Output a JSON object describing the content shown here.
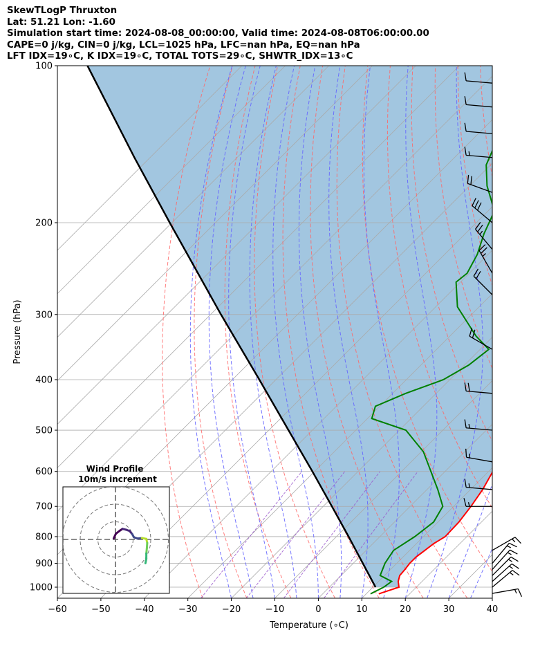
{
  "header": {
    "line1": "SkewTLogP Thruxton",
    "line2": "Lat: 51.21   Lon: -1.60",
    "line3": "Simulation start time: 2024-08-08_00:00:00, Valid time: 2024-08-08T06:00:00.00",
    "line4": "CAPE=0 j/kg, CIN=0 j/kg, LCL=1025 hPa, LFC=nan hPa, EQ=nan hPa",
    "line5": "LFT IDX=19∘C, K IDX=19∘C, TOTAL TOTS=29∘C, SHWTR_IDX=13∘C"
  },
  "chart_data": {
    "type": "skewt",
    "xlabel": "Temperature (∘C)",
    "ylabel": "Pressure (hPa)",
    "xlim": [
      -60,
      40
    ],
    "ylim": [
      1050,
      100
    ],
    "y_log_scale": true,
    "grid": true,
    "x_ticks": [
      -60,
      -50,
      -40,
      -30,
      -20,
      -10,
      0,
      10,
      20,
      30,
      40
    ],
    "x_tick_labels": [
      "−60",
      "−50",
      "−40",
      "−30",
      "−20",
      "−10",
      "0",
      "10",
      "20",
      "30",
      "40"
    ],
    "y_ticks": [
      1000,
      900,
      800,
      700,
      600,
      500,
      400,
      300,
      200,
      100
    ],
    "y_tick_labels": [
      "1000",
      "900",
      "800",
      "700",
      "600",
      "500",
      "400",
      "300",
      "200",
      "100"
    ],
    "colors": {
      "temperature": "#ff0000",
      "dewpoint": "#008000",
      "parcel": "#000000",
      "cape_fill": "#a2c6e0",
      "dry_adiabat": "#ff6666",
      "moist_adiabat": "#6666ff",
      "mixing_ratio": "#9955cc",
      "isotherm": "#aaaaaa"
    },
    "temperature": [
      [
        1030,
        12.9
      ],
      [
        1000,
        16.0
      ],
      [
        975,
        14.5
      ],
      [
        950,
        13.5
      ],
      [
        925,
        13.3
      ],
      [
        900,
        13.0
      ],
      [
        875,
        13.0
      ],
      [
        850,
        13.5
      ],
      [
        825,
        14.0
      ],
      [
        800,
        15.0
      ],
      [
        750,
        14.8
      ],
      [
        700,
        14.0
      ],
      [
        650,
        12.8
      ],
      [
        600,
        11.0
      ],
      [
        550,
        8.5
      ],
      [
        500,
        5.0
      ],
      [
        450,
        0.5
      ],
      [
        400,
        -4.0
      ],
      [
        350,
        -9.5
      ],
      [
        325,
        -12.8
      ],
      [
        300,
        -17.2
      ],
      [
        275,
        -22.0
      ],
      [
        250,
        -28.2
      ],
      [
        225,
        -33.8
      ],
      [
        210,
        -37.7
      ],
      [
        200,
        -39.5
      ],
      [
        185,
        -41.0
      ],
      [
        175,
        -43.0
      ],
      [
        160,
        -46.5
      ],
      [
        150,
        -49.7
      ],
      [
        140,
        -53.5
      ],
      [
        125,
        -59.0
      ],
      [
        115,
        -63.5
      ],
      [
        100,
        -71.0
      ]
    ],
    "dewpoint": [
      [
        1030,
        11.0
      ],
      [
        1000,
        12.5
      ],
      [
        975,
        13.0
      ],
      [
        950,
        9.0
      ],
      [
        900,
        7.3
      ],
      [
        850,
        6.3
      ],
      [
        800,
        8.0
      ],
      [
        750,
        9.0
      ],
      [
        700,
        7.5
      ],
      [
        650,
        2.5
      ],
      [
        550,
        -9.5
      ],
      [
        500,
        -18.5
      ],
      [
        475,
        -29.0
      ],
      [
        450,
        -31.0
      ],
      [
        425,
        -27.0
      ],
      [
        400,
        -21.5
      ],
      [
        375,
        -19.0
      ],
      [
        350,
        -18.0
      ],
      [
        330,
        -24.0
      ],
      [
        290,
        -35.0
      ],
      [
        260,
        -41.0
      ],
      [
        250,
        -40.5
      ],
      [
        230,
        -42.5
      ],
      [
        210,
        -45.7
      ],
      [
        190,
        -48.5
      ],
      [
        170,
        -56.0
      ],
      [
        155,
        -61.0
      ],
      [
        140,
        -64.0
      ],
      [
        120,
        -61.0
      ],
      [
        100,
        -61.0
      ]
    ],
    "parcel": [
      [
        1000,
        10.6
      ],
      [
        900,
        2.2
      ],
      [
        800,
        -7.2
      ],
      [
        700,
        -18.0
      ],
      [
        600,
        -30.5
      ],
      [
        500,
        -45.5
      ],
      [
        400,
        -63.8
      ],
      [
        300,
        -87.6
      ],
      [
        200,
        -120.5
      ],
      [
        150,
        -143.6
      ],
      [
        100,
        -175.5
      ]
    ],
    "wind_barbs": {
      "units": "kt",
      "levels": [
        {
          "p": 1028,
          "spd": 15,
          "dir": 80
        },
        {
          "p": 1000,
          "spd": 15,
          "dir": 50
        },
        {
          "p": 975,
          "spd": 15,
          "dir": 48
        },
        {
          "p": 950,
          "spd": 15,
          "dir": 45
        },
        {
          "p": 925,
          "spd": 15,
          "dir": 42
        },
        {
          "p": 900,
          "spd": 15,
          "dir": 40
        },
        {
          "p": 850,
          "spd": 15,
          "dir": 60
        },
        {
          "p": 700,
          "spd": 15,
          "dir": 270
        },
        {
          "p": 650,
          "spd": 15,
          "dir": 275
        },
        {
          "p": 575,
          "spd": 15,
          "dir": 280
        },
        {
          "p": 500,
          "spd": 15,
          "dir": 275
        },
        {
          "p": 425,
          "spd": 20,
          "dir": 275
        },
        {
          "p": 350,
          "spd": 20,
          "dir": 300
        },
        {
          "p": 275,
          "spd": 20,
          "dir": 315
        },
        {
          "p": 250,
          "spd": 25,
          "dir": 330
        },
        {
          "p": 225,
          "spd": 25,
          "dir": 320
        },
        {
          "p": 200,
          "spd": 30,
          "dir": 310
        },
        {
          "p": 175,
          "spd": 20,
          "dir": 290
        },
        {
          "p": 150,
          "spd": 15,
          "dir": 275
        },
        {
          "p": 135,
          "spd": 10,
          "dir": 275
        },
        {
          "p": 120,
          "spd": 10,
          "dir": 275
        },
        {
          "p": 108,
          "spd": 10,
          "dir": 275
        }
      ]
    },
    "hodograph": {
      "title": "Wind Profile",
      "subtitle": "10m/s increment",
      "rings_ms": [
        10,
        20,
        30
      ],
      "points": [
        [
          -1.0,
          0.6
        ],
        [
          0.2,
          3.2
        ],
        [
          2.5,
          5.0
        ],
        [
          4.0,
          6.0
        ],
        [
          6.0,
          5.5
        ],
        [
          8.0,
          4.8
        ],
        [
          9.5,
          3.0
        ],
        [
          10.5,
          1.2
        ],
        [
          12.5,
          0.5
        ],
        [
          15.0,
          0.8
        ],
        [
          17.5,
          0.3
        ],
        [
          18.0,
          -2.0
        ],
        [
          17.8,
          -5.0
        ],
        [
          17.5,
          -8.0
        ],
        [
          17.5,
          -11.0
        ],
        [
          17.0,
          -13.5
        ]
      ]
    }
  }
}
